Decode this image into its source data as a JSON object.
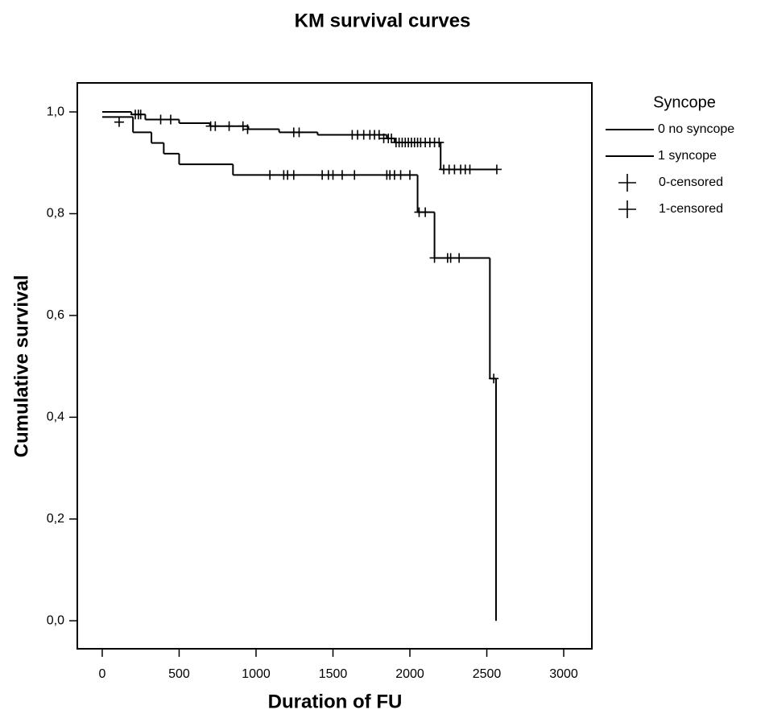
{
  "chart_data": {
    "type": "line",
    "step": "post",
    "title": "KM survival curves",
    "x_label": "Duration of FU",
    "y_label": "Cumulative survival",
    "legend_title": "Syncope",
    "legend": "right",
    "xlim": [
      -162,
      3183
    ],
    "ylim": [
      -0.055,
      1.057
    ],
    "xticks": [
      0,
      500,
      1000,
      1500,
      2000,
      2500,
      3000
    ],
    "yticks": [
      {
        "value": 0,
        "label": "0,0"
      },
      {
        "value": 0.2,
        "label": "0,2"
      },
      {
        "value": 0.4,
        "label": "0,4"
      },
      {
        "value": 0.6,
        "label": "0,6"
      },
      {
        "value": 0.8,
        "label": "0,8"
      },
      {
        "value": 1.0,
        "label": "1,0"
      }
    ],
    "series": [
      {
        "name": "0 no syncope",
        "color": "#000000",
        "marker": "step",
        "x": [
          0,
          190,
          280,
          500,
          700,
          950,
          1150,
          1400,
          1850,
          1900,
          2200,
          2560
        ],
        "values": [
          1.0,
          0.995,
          0.985,
          0.978,
          0.972,
          0.966,
          0.96,
          0.955,
          0.948,
          0.94,
          0.887,
          0.887
        ]
      },
      {
        "name": "1 syncope",
        "color": "#000000",
        "marker": "step",
        "x": [
          0,
          200,
          320,
          400,
          500,
          850,
          2050,
          2160,
          2520,
          2560
        ],
        "values": [
          0.99,
          0.96,
          0.939,
          0.918,
          0.897,
          0.876,
          0.803,
          0.713,
          0.476,
          0.0
        ]
      },
      {
        "name": "0-censored",
        "color": "#000000",
        "marker": "plus",
        "x": [
          215,
          235,
          250,
          380,
          445,
          705,
          735,
          825,
          915,
          945,
          1245,
          1280,
          1625,
          1660,
          1700,
          1740,
          1770,
          1800,
          1830,
          1860,
          1880,
          1910,
          1930,
          1950,
          1970,
          1990,
          2010,
          2030,
          2050,
          2070,
          2100,
          2130,
          2160,
          2190,
          2220,
          2255,
          2290,
          2330,
          2360,
          2390,
          2565
        ],
        "values": [
          0.995,
          0.995,
          0.995,
          0.985,
          0.985,
          0.972,
          0.972,
          0.972,
          0.972,
          0.966,
          0.96,
          0.96,
          0.955,
          0.955,
          0.955,
          0.955,
          0.955,
          0.955,
          0.948,
          0.948,
          0.948,
          0.94,
          0.94,
          0.94,
          0.94,
          0.94,
          0.94,
          0.94,
          0.94,
          0.94,
          0.94,
          0.94,
          0.94,
          0.94,
          0.887,
          0.887,
          0.887,
          0.887,
          0.887,
          0.887,
          0.887
        ]
      },
      {
        "name": "1-censored",
        "color": "#000000",
        "marker": "plus",
        "x": [
          110,
          1090,
          1180,
          1205,
          1245,
          1430,
          1470,
          1500,
          1560,
          1640,
          1850,
          1870,
          1900,
          1940,
          2000,
          2060,
          2100,
          2160,
          2245,
          2265,
          2320,
          2545
        ],
        "values": [
          0.98,
          0.876,
          0.876,
          0.876,
          0.876,
          0.876,
          0.876,
          0.876,
          0.876,
          0.876,
          0.876,
          0.876,
          0.876,
          0.876,
          0.876,
          0.803,
          0.803,
          0.713,
          0.713,
          0.713,
          0.713,
          0.476
        ]
      }
    ]
  }
}
